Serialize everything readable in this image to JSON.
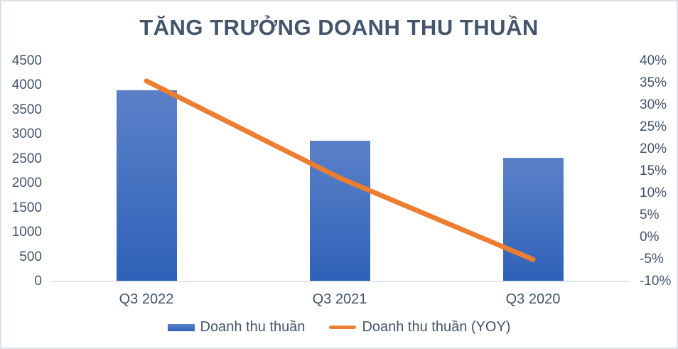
{
  "title": "TĂNG TRƯỞNG DOANH THU THUẦN",
  "chart_data": {
    "type": "bar",
    "subtype": "bar-line-combo",
    "categories": [
      "Q3 2022",
      "Q3 2021",
      "Q3 2020"
    ],
    "series": [
      {
        "name": "Doanh thu thuần",
        "type": "bar",
        "axis": "left",
        "values": [
          3900,
          2880,
          2530
        ]
      },
      {
        "name": "Doanh thu thuần (YOY)",
        "type": "line",
        "axis": "right",
        "values": [
          35.5,
          13.5,
          -5
        ]
      }
    ],
    "left_axis": {
      "ticks": [
        "4500",
        "4000",
        "3500",
        "3000",
        "2500",
        "2000",
        "1500",
        "1000",
        "500",
        "0"
      ],
      "min": 0,
      "max": 4500
    },
    "right_axis": {
      "ticks": [
        "40%",
        "35%",
        "30%",
        "25%",
        "20%",
        "15%",
        "10%",
        "5%",
        "0%",
        "-5%",
        "-10%"
      ],
      "min": -10,
      "max": 40
    },
    "legend": {
      "position": "bottom",
      "items": [
        "Doanh thu thuần",
        "Doanh thu thuần (YOY)"
      ]
    },
    "grid": "off",
    "colors": {
      "bar_gradient_top": "#5b81c8",
      "bar_gradient_bottom": "#2e62b8",
      "line": "#ed7d31",
      "text": "#44546a",
      "axis_line": "#e2e6ec",
      "frame_border": "#dce1e9",
      "background": "#ffffff"
    }
  }
}
